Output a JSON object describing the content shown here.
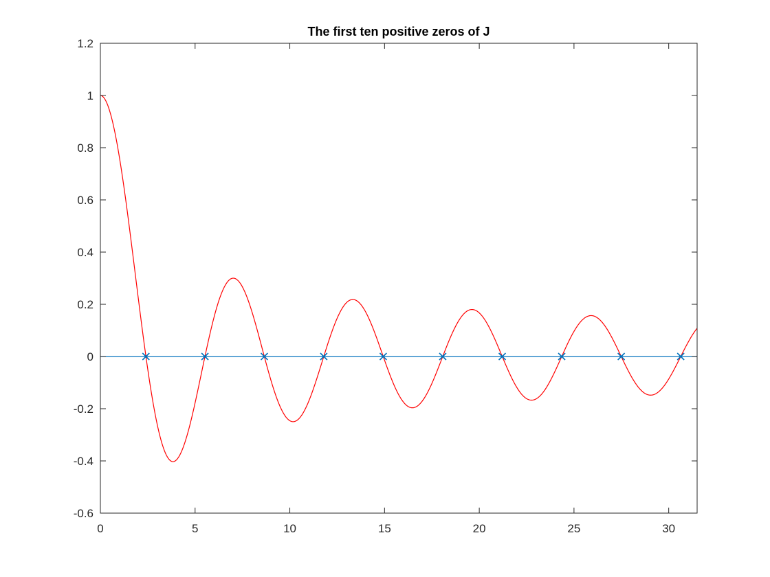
{
  "chart_data": {
    "type": "line",
    "title": "The first ten positive zeros of J",
    "xlabel": "",
    "ylabel": "",
    "xlim": [
      0,
      31.5
    ],
    "ylim": [
      -0.6,
      1.2
    ],
    "x_ticks": [
      0,
      5,
      10,
      15,
      20,
      25,
      30
    ],
    "x_tick_labels": [
      "0",
      "5",
      "10",
      "15",
      "20",
      "25",
      "30"
    ],
    "y_ticks": [
      -0.6,
      -0.4,
      -0.2,
      0,
      0.2,
      0.4,
      0.6,
      0.8,
      1,
      1.2
    ],
    "y_tick_labels": [
      "-0.6",
      "-0.4",
      "-0.2",
      "0",
      "0.2",
      "0.4",
      "0.6",
      "0.8",
      "1",
      "1.2"
    ],
    "grid": false,
    "legend": "none",
    "series": [
      {
        "kind": "curve",
        "function": "J0",
        "color": "#ff0000",
        "x_range": [
          0,
          31.5
        ],
        "sample_points": [
          [
            0,
            1.0
          ],
          [
            1,
            0.77
          ],
          [
            2,
            0.22
          ],
          [
            2.405,
            0.0
          ],
          [
            3,
            -0.26
          ],
          [
            3.83,
            -0.403
          ],
          [
            5,
            -0.18
          ],
          [
            5.52,
            0.0
          ],
          [
            7.02,
            0.3
          ],
          [
            8.65,
            0.0
          ],
          [
            10.17,
            -0.25
          ],
          [
            11.79,
            0.0
          ],
          [
            13.32,
            0.218
          ],
          [
            14.93,
            0.0
          ],
          [
            16.47,
            -0.196
          ],
          [
            18.07,
            0.0
          ],
          [
            19.62,
            0.18
          ],
          [
            21.21,
            0.0
          ],
          [
            22.76,
            -0.167
          ],
          [
            24.35,
            0.0
          ],
          [
            25.9,
            0.157
          ],
          [
            27.49,
            0.0
          ],
          [
            29.05,
            -0.148
          ],
          [
            30.63,
            0.0
          ],
          [
            31.5,
            0.1
          ]
        ]
      },
      {
        "kind": "baseline",
        "y": 0,
        "color": "#0072bd",
        "x_range": [
          0,
          31.5
        ]
      },
      {
        "kind": "markers",
        "marker": "x",
        "color": "#0072bd",
        "x": [
          2.4048,
          5.5201,
          8.6537,
          11.7915,
          14.9309,
          18.0711,
          21.2116,
          24.3525,
          27.4935,
          30.6346
        ],
        "y": [
          0,
          0,
          0,
          0,
          0,
          0,
          0,
          0,
          0,
          0
        ]
      }
    ]
  }
}
